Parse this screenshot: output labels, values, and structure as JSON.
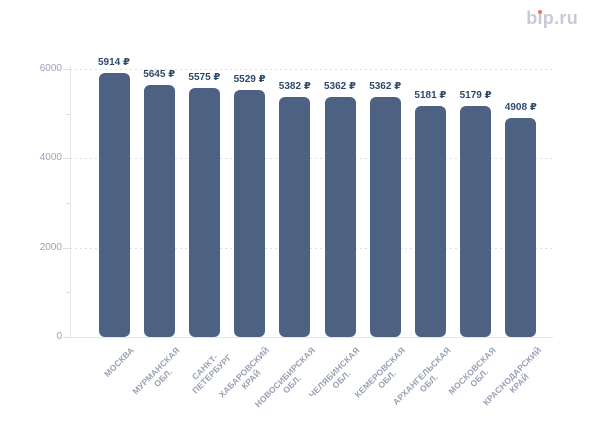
{
  "brand": {
    "pre": "b",
    "i_body": "ı",
    "post": "p.ru",
    "dot_color": "#f0764f",
    "text_color": "#c7cad8"
  },
  "chart_data": {
    "type": "bar",
    "title": "",
    "xlabel": "",
    "ylabel": "",
    "categories": [
      "МОСКВА",
      "МУРМАНСКАЯ\nОБЛ.",
      "САНКТ-\nПЕТЕРБУРГ",
      "ХАБАРОВСКИЙ\nКРАЙ",
      "НОВОСИБИРСКАЯ\nОБЛ.",
      "ЧЕЛЯБИНСКАЯ\nОБЛ.",
      "КЕМЕРОВСКАЯ\nОБЛ.",
      "АРХАНГЕЛЬСКАЯ\nОБЛ.",
      "МОСКОВСКАЯ\nОБЛ.",
      "КРАСНОДАРСКИЙ\nКРАЙ"
    ],
    "values": [
      5914,
      5645,
      5575,
      5529,
      5382,
      5362,
      5362,
      5181,
      5179,
      4908
    ],
    "value_labels": [
      "5914 ₽",
      "5645 ₽",
      "5575 ₽",
      "5529 ₽",
      "5382 ₽",
      "5362 ₽",
      "5362 ₽",
      "5181 ₽",
      "5179 ₽",
      "4908 ₽"
    ],
    "currency": "₽",
    "ylim": [
      0,
      6000
    ],
    "y_ticks": [
      0,
      2000,
      4000,
      6000
    ],
    "y_minor_ticks": [
      1000,
      3000,
      5000
    ],
    "grid": true,
    "legend": false,
    "bar_color": "#4d6283",
    "value_label_color": "#2e4a6b",
    "axis_label_color": "#99a1b3",
    "grid_color": "#dcdfe7"
  }
}
